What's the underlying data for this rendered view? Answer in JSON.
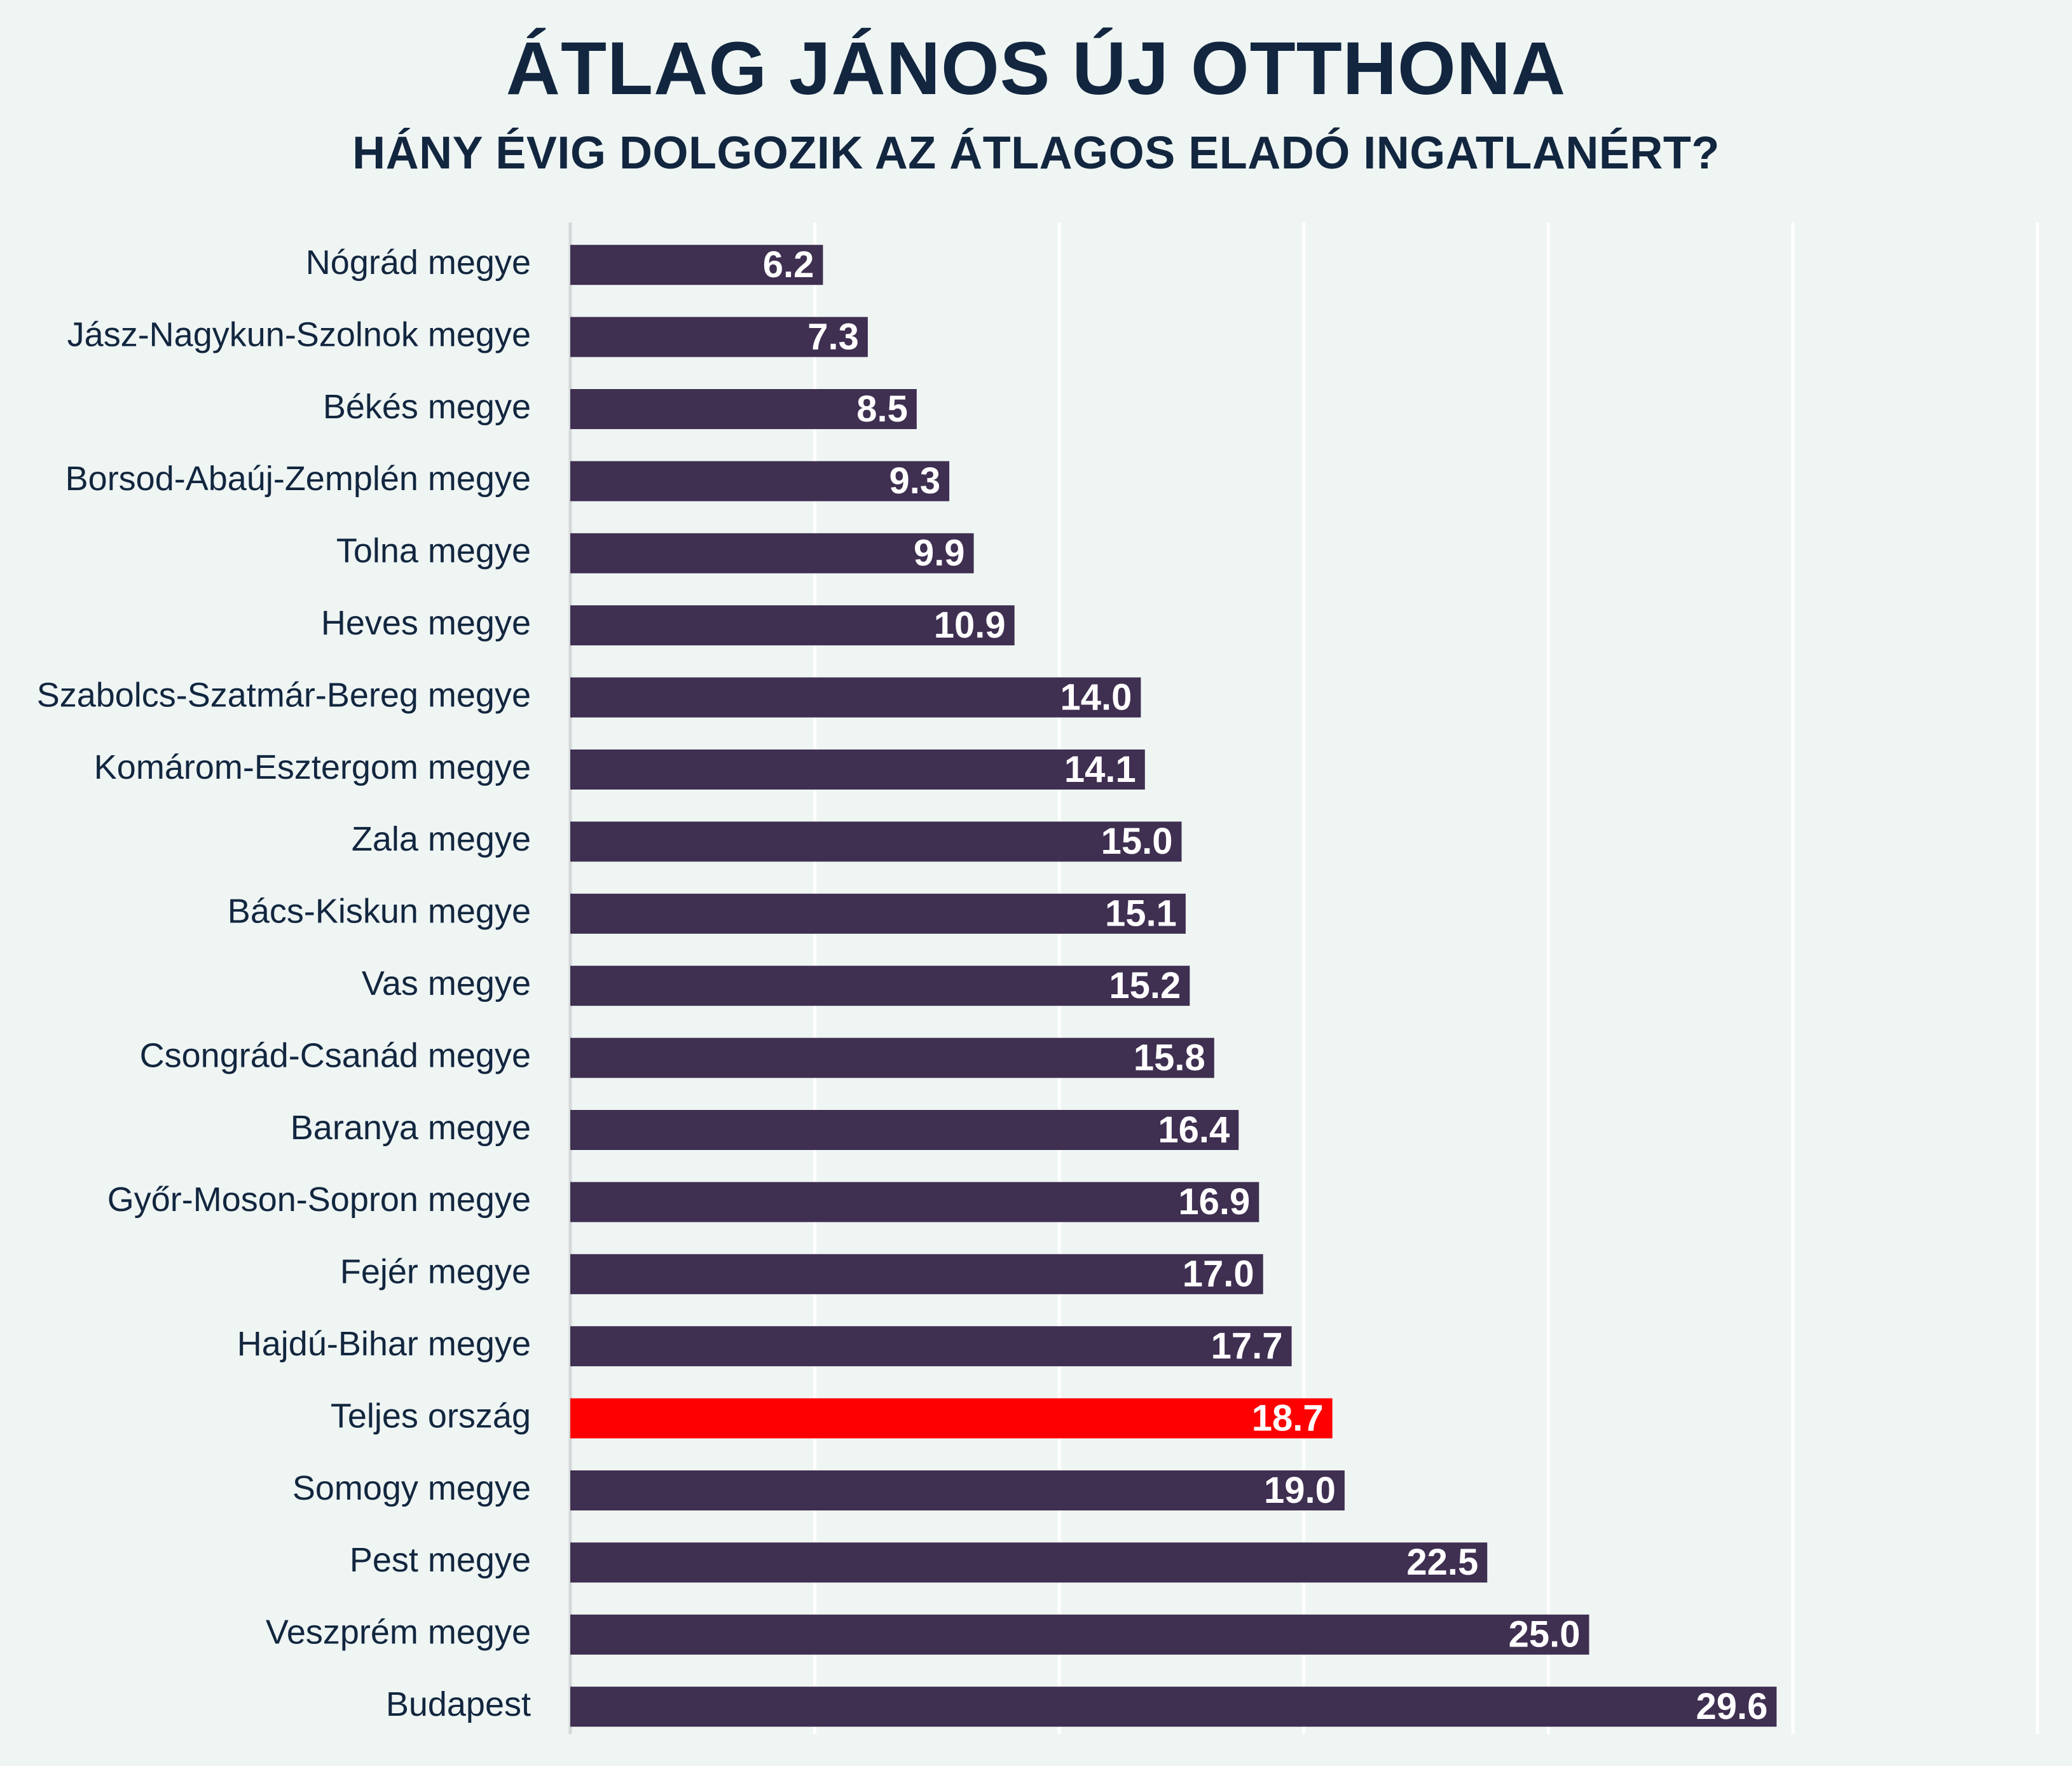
{
  "chart_data": {
    "type": "bar",
    "orientation": "horizontal",
    "title": "ÁTLAG JÁNOS ÚJ OTTHONA",
    "subtitle": "HÁNY ÉVIG DOLGOZIK AZ ÁTLAGOS ELADÓ INGATLANÉRT?",
    "categories": [
      "Nógrád megye",
      "Jász-Nagykun-Szolnok megye",
      "Békés megye",
      "Borsod-Abaúj-Zemplén megye",
      "Tolna megye",
      "Heves megye",
      "Szabolcs-Szatmár-Bereg megye",
      "Komárom-Esztergom megye",
      "Zala megye",
      "Bács-Kiskun megye",
      "Vas megye",
      "Csongrád-Csanád megye",
      "Baranya megye",
      "Győr-Moson-Sopron megye",
      "Fejér megye",
      "Hajdú-Bihar megye",
      "Teljes ország",
      "Somogy megye",
      "Pest megye",
      "Veszprém megye",
      "Budapest"
    ],
    "values": [
      6.2,
      7.3,
      8.5,
      9.3,
      9.9,
      10.9,
      14.0,
      14.1,
      15.0,
      15.1,
      15.2,
      15.8,
      16.4,
      16.9,
      17.0,
      17.7,
      18.7,
      19.0,
      22.5,
      25.0,
      29.6
    ],
    "data_labels": [
      "6.2",
      "7.3",
      "8.5",
      "9.3",
      "9.9",
      "10.9",
      "14.0",
      "14.1",
      "15.0",
      "15.1",
      "15.2",
      "15.8",
      "16.4",
      "16.9",
      "17.0",
      "17.7",
      "18.7",
      "19.0",
      "22.5",
      "25.0",
      "29.6"
    ],
    "highlight_category": "Teljes ország",
    "xlim": [
      0,
      36
    ],
    "grid_step": 6,
    "grid": true,
    "xlabel": "",
    "ylabel": ""
  },
  "colors": {
    "background": "#eff5f3",
    "bar": "#3f2f51",
    "highlight": "#ff0000",
    "text": "#12263f",
    "grid": "#ffffff",
    "axis": "#d4d8da",
    "label_inside": "#ffffff",
    "label_outside": "#12263f"
  }
}
